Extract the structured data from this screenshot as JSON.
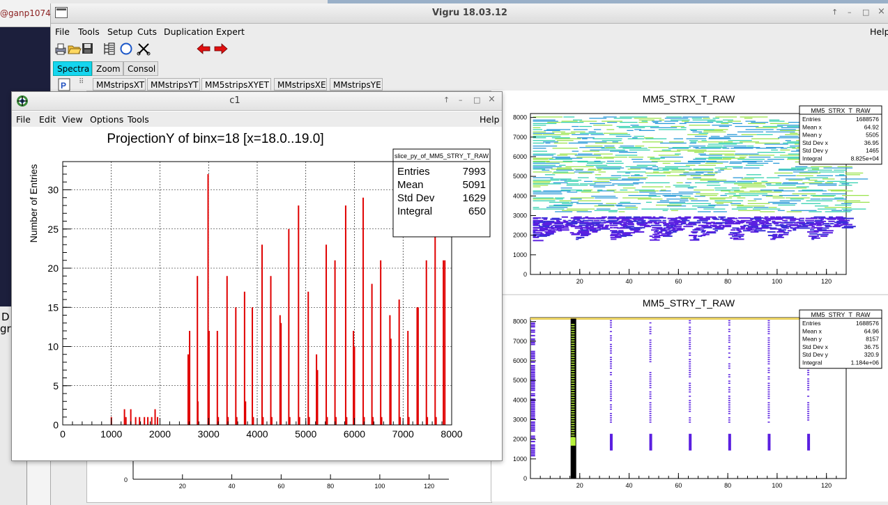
{
  "background": {
    "terminal_title": "@ganp1074",
    "left_letters": [
      "D",
      "gr"
    ]
  },
  "vigru": {
    "title": "Vigru  18.03.12",
    "window_controls": [
      "↑",
      "–",
      "□",
      "×"
    ],
    "menu": [
      "File",
      "Tools",
      "Setup",
      "Cuts",
      "Duplication",
      "Expert"
    ],
    "help": "Help",
    "tabs": [
      "Spectra",
      "Zoom",
      "Consol"
    ],
    "subtabs": [
      "MMstripsXT",
      "MMstripsYT",
      "MM5stripsXYET",
      "MMstripsXE",
      "MMstripsYE"
    ]
  },
  "c1": {
    "title": "c1",
    "window_controls": [
      "↑",
      "–",
      "□",
      "×"
    ],
    "menu": [
      "File",
      "Edit",
      "View",
      "Options",
      "Tools"
    ],
    "help": "Help"
  },
  "chart_data": [
    {
      "type": "bar",
      "title": "ProjectionY of binx=18 [x=18.0..19.0]",
      "xlabel": "",
      "ylabel": "Number of Entries",
      "xlim": [
        0,
        8000
      ],
      "ylim": [
        0,
        33.6
      ],
      "x_ticks": [
        0,
        1000,
        2000,
        3000,
        4000,
        5000,
        6000,
        7000,
        8000
      ],
      "y_ticks": [
        0,
        5,
        10,
        15,
        20,
        25,
        30
      ],
      "grid": true,
      "color": "#e00000",
      "stats": {
        "name": "slice_py_of_MM5_STRY_T_RAW",
        "rows": [
          [
            "Entries",
            "7993"
          ],
          [
            "Mean",
            "5091"
          ],
          [
            "Std Dev",
            "1629"
          ],
          [
            "Integral",
            "650"
          ]
        ]
      },
      "bars": [
        {
          "x": 1000,
          "y": 1
        },
        {
          "x": 1270,
          "y": 2
        },
        {
          "x": 1300,
          "y": 1
        },
        {
          "x": 1400,
          "y": 2
        },
        {
          "x": 1500,
          "y": 1
        },
        {
          "x": 1580,
          "y": 1
        },
        {
          "x": 1680,
          "y": 1
        },
        {
          "x": 1750,
          "y": 1
        },
        {
          "x": 1830,
          "y": 1
        },
        {
          "x": 1900,
          "y": 2
        },
        {
          "x": 1950,
          "y": 1
        },
        {
          "x": 2580,
          "y": 9
        },
        {
          "x": 2610,
          "y": 12
        },
        {
          "x": 2770,
          "y": 19
        },
        {
          "x": 2780,
          "y": 3
        },
        {
          "x": 2990,
          "y": 32
        },
        {
          "x": 3010,
          "y": 12
        },
        {
          "x": 3180,
          "y": 12
        },
        {
          "x": 3200,
          "y": 1
        },
        {
          "x": 3380,
          "y": 19
        },
        {
          "x": 3400,
          "y": 1
        },
        {
          "x": 3560,
          "y": 15
        },
        {
          "x": 3580,
          "y": 1
        },
        {
          "x": 3740,
          "y": 17
        },
        {
          "x": 3760,
          "y": 3
        },
        {
          "x": 3900,
          "y": 15
        },
        {
          "x": 3920,
          "y": 1
        },
        {
          "x": 4100,
          "y": 23
        },
        {
          "x": 4120,
          "y": 1
        },
        {
          "x": 4280,
          "y": 19
        },
        {
          "x": 4300,
          "y": 1
        },
        {
          "x": 4470,
          "y": 14
        },
        {
          "x": 4490,
          "y": 13
        },
        {
          "x": 4650,
          "y": 25
        },
        {
          "x": 4670,
          "y": 1
        },
        {
          "x": 4850,
          "y": 28
        },
        {
          "x": 4870,
          "y": 1
        },
        {
          "x": 5050,
          "y": 17
        },
        {
          "x": 5070,
          "y": 1
        },
        {
          "x": 5220,
          "y": 9
        },
        {
          "x": 5240,
          "y": 7
        },
        {
          "x": 5420,
          "y": 23
        },
        {
          "x": 5440,
          "y": 1
        },
        {
          "x": 5600,
          "y": 21
        },
        {
          "x": 5620,
          "y": 1
        },
        {
          "x": 5820,
          "y": 28
        },
        {
          "x": 5840,
          "y": 1
        },
        {
          "x": 5980,
          "y": 12
        },
        {
          "x": 6000,
          "y": 10
        },
        {
          "x": 6180,
          "y": 29
        },
        {
          "x": 6200,
          "y": 1
        },
        {
          "x": 6360,
          "y": 18
        },
        {
          "x": 6380,
          "y": 1
        },
        {
          "x": 6540,
          "y": 21
        },
        {
          "x": 6560,
          "y": 1
        },
        {
          "x": 6730,
          "y": 14
        },
        {
          "x": 6750,
          "y": 11
        },
        {
          "x": 6920,
          "y": 16
        },
        {
          "x": 6940,
          "y": 1
        },
        {
          "x": 7100,
          "y": 12
        },
        {
          "x": 7120,
          "y": 1
        },
        {
          "x": 7290,
          "y": 15
        },
        {
          "x": 7310,
          "y": 15
        },
        {
          "x": 7480,
          "y": 21
        },
        {
          "x": 7500,
          "y": 1
        },
        {
          "x": 7660,
          "y": 24
        },
        {
          "x": 7680,
          "y": 1
        },
        {
          "x": 7830,
          "y": 21
        },
        {
          "x": 7860,
          "y": 21
        }
      ]
    },
    {
      "type": "heatmap",
      "title": "MM5_STRX_T_RAW",
      "xlim": [
        0,
        128
      ],
      "ylim": [
        0,
        8200
      ],
      "x_ticks": [
        20,
        40,
        60,
        80,
        100,
        120
      ],
      "y_ticks": [
        0,
        1000,
        2000,
        3000,
        4000,
        5000,
        6000,
        7000,
        8000
      ],
      "stats": {
        "name": "MM5_STRX_T_RAW",
        "rows": [
          [
            "Entries",
            "1688576"
          ],
          [
            "Mean x",
            "64.92"
          ],
          [
            "Mean y",
            "5505"
          ],
          [
            "Std Dev x",
            "36.95"
          ],
          [
            "Std Dev y",
            "1465"
          ],
          [
            "Integral",
            "8.825e+04"
          ]
        ]
      },
      "colors": [
        "#5a1fe0",
        "#3a2fd8",
        "#2a9ad8",
        "#34d1b0",
        "#9ae34c"
      ]
    },
    {
      "type": "heatmap",
      "title": "MM5_STRY_T_RAW",
      "xlim": [
        0,
        128
      ],
      "ylim": [
        0,
        8200
      ],
      "x_ticks": [
        20,
        40,
        60,
        80,
        100,
        120
      ],
      "y_ticks": [
        0,
        1000,
        2000,
        3000,
        4000,
        5000,
        6000,
        7000,
        8000
      ],
      "stats": {
        "name": "MM5_STRY_T_RAW",
        "rows": [
          [
            "Entries",
            "1688576"
          ],
          [
            "Mean x",
            "64.96"
          ],
          [
            "Mean y",
            "8157"
          ],
          [
            "Std Dev x",
            "36.75"
          ],
          [
            "Std Dev y",
            "320.9"
          ],
          [
            "Integral",
            "1.184e+06"
          ]
        ]
      },
      "columns_x": [
        1,
        18,
        33,
        49,
        65,
        81,
        97,
        113
      ],
      "colors": [
        "#5a1fe0",
        "#000000",
        "#b7f23a",
        "#d6c020"
      ]
    },
    {
      "type": "heatmap",
      "title": "",
      "xlim": [
        0,
        128
      ],
      "x_ticks": [
        20,
        40,
        60,
        80,
        100,
        120
      ],
      "y_ticks": [
        0
      ]
    }
  ]
}
